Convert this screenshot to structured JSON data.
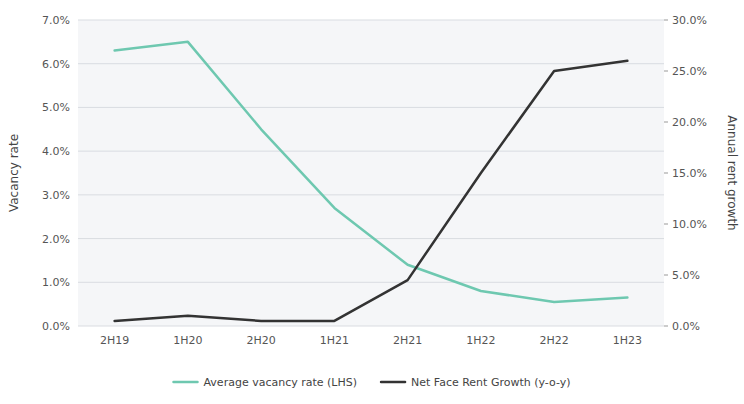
{
  "chart_data": {
    "type": "line",
    "categories": [
      "2H19",
      "1H20",
      "2H20",
      "1H21",
      "2H21",
      "1H22",
      "2H22",
      "1H23"
    ],
    "series": [
      {
        "name": "Average vacancy rate (LHS)",
        "color": "#6ec8b0",
        "axis": "y",
        "values": [
          6.3,
          6.5,
          4.5,
          2.7,
          1.4,
          0.8,
          0.55,
          0.65
        ]
      },
      {
        "name": "Net Face Rent Growth (y-o-y)",
        "color": "#333333",
        "axis": "y2",
        "values": [
          0.5,
          1.0,
          0.5,
          0.5,
          4.5,
          15.0,
          25.0,
          26.0
        ]
      }
    ],
    "ylabel": "Vacancy rate",
    "y2label": "Annual rent growth",
    "ylim": [
      0.0,
      7.0
    ],
    "yticks": [
      {
        "value": 0.0,
        "label": "0.0%"
      },
      {
        "value": 1.0,
        "label": "1.0%"
      },
      {
        "value": 2.0,
        "label": "2.0%"
      },
      {
        "value": 3.0,
        "label": "3.0%"
      },
      {
        "value": 4.0,
        "label": "4.0%"
      },
      {
        "value": 5.0,
        "label": "5.0%"
      },
      {
        "value": 6.0,
        "label": "6.0%"
      },
      {
        "value": 7.0,
        "label": "7.0%"
      }
    ],
    "y2lim": [
      0.0,
      30.0
    ],
    "y2ticks": [
      {
        "value": 0.0,
        "label": "0.0%"
      },
      {
        "value": 5.0,
        "label": "5.0%"
      },
      {
        "value": 10.0,
        "label": "10.0%"
      },
      {
        "value": 15.0,
        "label": "15.0%"
      },
      {
        "value": 20.0,
        "label": "20.0%"
      },
      {
        "value": 25.0,
        "label": "25.0%"
      },
      {
        "value": 30.0,
        "label": "30.0%"
      }
    ],
    "grid": true,
    "legend": "bottom"
  }
}
